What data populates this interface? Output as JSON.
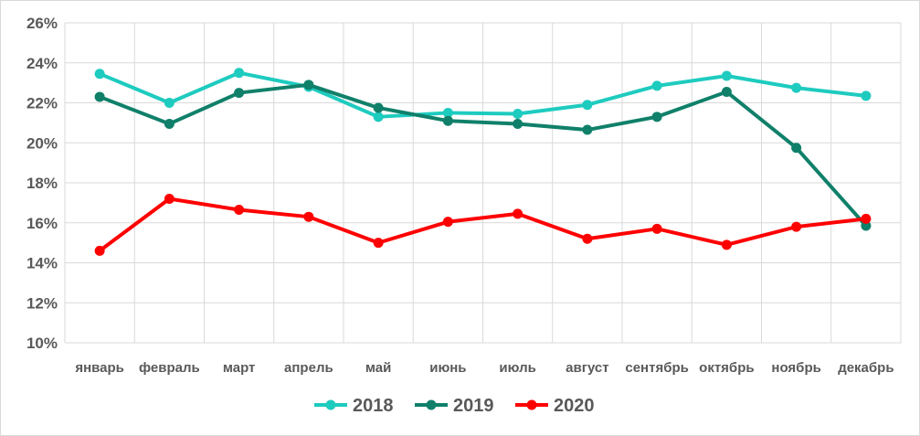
{
  "chart_data": {
    "type": "line",
    "categories": [
      "январь",
      "февраль",
      "март",
      "апрель",
      "май",
      "июнь",
      "июль",
      "август",
      "сентябрь",
      "октябрь",
      "ноябрь",
      "декабрь"
    ],
    "series": [
      {
        "name": "2018",
        "color": "#1ECBBF",
        "values": [
          23.45,
          22.0,
          23.5,
          22.8,
          21.3,
          21.5,
          21.45,
          21.9,
          22.85,
          23.35,
          22.75,
          22.35
        ]
      },
      {
        "name": "2019",
        "color": "#10806A",
        "values": [
          22.3,
          20.95,
          22.5,
          22.9,
          21.75,
          21.1,
          20.95,
          20.65,
          21.3,
          22.55,
          19.75,
          15.85
        ]
      },
      {
        "name": "2020",
        "color": "#FF0000",
        "values": [
          14.6,
          17.2,
          16.65,
          16.3,
          15.0,
          16.05,
          16.45,
          15.2,
          15.7,
          14.9,
          15.8,
          16.2
        ]
      }
    ],
    "y_ticks": [
      "10%",
      "12%",
      "14%",
      "16%",
      "18%",
      "20%",
      "22%",
      "24%",
      "26%"
    ],
    "ylim": [
      10,
      26
    ],
    "y_unit": "percent",
    "grid": "vertical and horizontal",
    "legend_position": "bottom",
    "xlabel": "",
    "ylabel": ""
  }
}
